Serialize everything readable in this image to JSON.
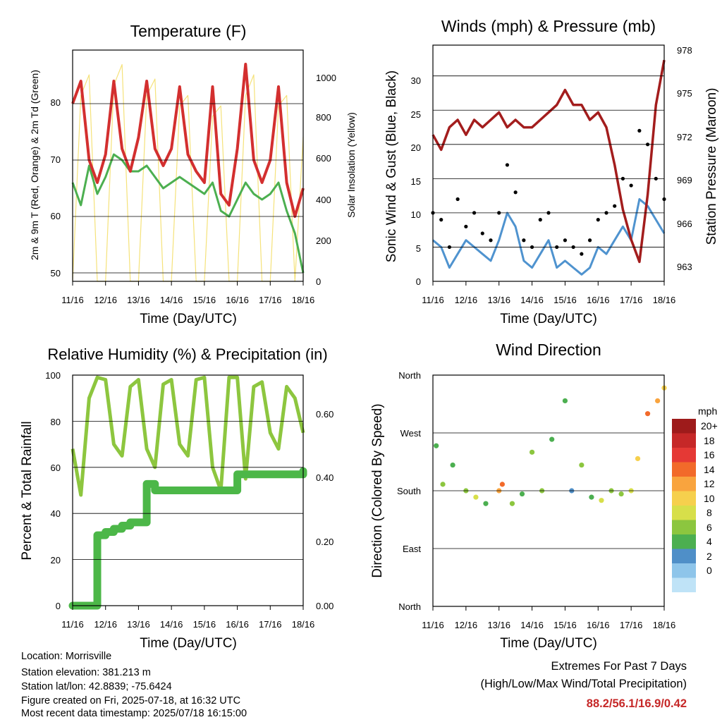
{
  "ticks_x": [
    "11/16",
    "12/16",
    "13/16",
    "14/16",
    "15/16",
    "16/16",
    "17/16",
    "18/16"
  ],
  "xlabel": "Time (Day/UTC)",
  "temperature": {
    "title": "Temperature (F)",
    "ylabel_left": "2m & 9m T (Red, Orange) & 2m Td (Green)",
    "ylabel_right": "Solar Insolation (Yellow)",
    "yticks_left": [
      "50",
      "60",
      "70",
      "80"
    ],
    "yticks_right": [
      "0",
      "200",
      "400",
      "600",
      "800",
      "1000"
    ]
  },
  "winds": {
    "title": "Winds (mph) & Pressure (mb)",
    "ylabel_left": "Sonic Wind & Gust (Blue, Black)",
    "ylabel_right": "Station Pressure (Maroon)",
    "yticks_left": [
      "0",
      "5",
      "10",
      "15",
      "20",
      "25",
      "30"
    ],
    "yticks_right": [
      "963",
      "966",
      "969",
      "972",
      "975",
      "978"
    ]
  },
  "humidity": {
    "title": "Relative Humidity (%) & Precipitation (in)",
    "ylabel_left": "Percent & Total Rainfall",
    "yticks_left": [
      "0",
      "20",
      "40",
      "60",
      "80",
      "100"
    ],
    "yticks_right": [
      "0.00",
      "0.20",
      "0.40",
      "0.60"
    ]
  },
  "direction": {
    "title": "Wind Direction",
    "ylabel_left": "Direction (Colored By Speed)",
    "yticks_left": [
      "North",
      "East",
      "South",
      "West",
      "North"
    ],
    "legend_title": "mph",
    "legend_labels": [
      "20+",
      "18",
      "16",
      "14",
      "12",
      "10",
      "8",
      "6",
      "4",
      "2",
      "0"
    ],
    "legend_colors": [
      "#9e1b1b",
      "#c62828",
      "#e53935",
      "#f26a2a",
      "#f9a43e",
      "#f6d04d",
      "#d7df4a",
      "#8cc63f",
      "#4caf50",
      "#4f8fc8",
      "#8ec5ea",
      "#bfe3f7"
    ]
  },
  "chart_data": [
    {
      "type": "line",
      "title": "Temperature (F)",
      "xlabel": "Time (Day/UTC)",
      "ylabel": "2m & 9m T (Red, Orange) & 2m Td (Green)",
      "y2label": "Solar Insolation (Yellow)",
      "x": [
        11.0,
        11.25,
        11.5,
        11.75,
        12.0,
        12.25,
        12.5,
        12.75,
        13.0,
        13.25,
        13.5,
        13.75,
        14.0,
        14.25,
        14.5,
        14.75,
        15.0,
        15.25,
        15.5,
        15.75,
        16.0,
        16.25,
        16.5,
        16.75,
        17.0,
        17.25,
        17.5,
        17.75,
        18.0
      ],
      "ylim": [
        48.5,
        89.5
      ],
      "y2lim": [
        0,
        1120
      ],
      "series": [
        {
          "name": "2m & 9m T",
          "color": "#d32f2f",
          "values": [
            80,
            84,
            70,
            66,
            71,
            84,
            72,
            68,
            74,
            84,
            72,
            69,
            72,
            83,
            71,
            68,
            66,
            83,
            64,
            62,
            72,
            87,
            70,
            66,
            70,
            83,
            66,
            60,
            65
          ]
        },
        {
          "name": "2m Td",
          "color": "#4caf50",
          "values": [
            66,
            62,
            69,
            64,
            67,
            71,
            70,
            68,
            68,
            69,
            67,
            65,
            66,
            67,
            66,
            65,
            64,
            66,
            61,
            60,
            63,
            66,
            64,
            63,
            64,
            66,
            61,
            57,
            50
          ]
        },
        {
          "name": "Solar Insolation",
          "color": "#f5e27a",
          "axis": "right",
          "values": [
            0,
            900,
            1000,
            0,
            0,
            950,
            1050,
            0,
            0,
            900,
            980,
            0,
            0,
            850,
            900,
            0,
            0,
            800,
            850,
            0,
            0,
            900,
            1000,
            0,
            0,
            850,
            900,
            0,
            700
          ]
        }
      ]
    },
    {
      "type": "line",
      "title": "Winds (mph) & Pressure (mb)",
      "xlabel": "Time (Day/UTC)",
      "ylabel": "Sonic Wind & Gust (Blue, Black)",
      "y2label": "Station Pressure (Maroon)",
      "x": [
        11.0,
        11.25,
        11.5,
        11.75,
        12.0,
        12.25,
        12.5,
        12.75,
        13.0,
        13.25,
        13.5,
        13.75,
        14.0,
        14.25,
        14.5,
        14.75,
        15.0,
        15.25,
        15.5,
        15.75,
        16.0,
        16.25,
        16.5,
        16.75,
        17.0,
        17.25,
        17.5,
        17.75,
        18.0
      ],
      "ylim": [
        0,
        34.5
      ],
      "y2lim": [
        962.2,
        978
      ],
      "series": [
        {
          "name": "Sonic Wind",
          "color": "#4f93cf",
          "values": [
            6,
            5,
            2,
            4,
            6,
            5,
            4,
            3,
            6,
            10,
            8,
            3,
            2,
            4,
            6,
            2,
            3,
            2,
            1,
            2,
            5,
            4,
            6,
            8,
            6,
            12,
            11,
            9,
            7
          ]
        },
        {
          "name": "Gust",
          "color": "#000000",
          "values": [
            10,
            9,
            5,
            12,
            8,
            10,
            7,
            6,
            10,
            17,
            13,
            6,
            5,
            9,
            10,
            5,
            6,
            5,
            4,
            6,
            9,
            10,
            11,
            15,
            14,
            22,
            20,
            15,
            12
          ]
        },
        {
          "name": "Station Pressure",
          "color": "#a31d1d",
          "axis": "right",
          "values": [
            972,
            971,
            972.5,
            973,
            972,
            973,
            972.5,
            973,
            973.5,
            972.5,
            973,
            972.5,
            972.5,
            973,
            973.5,
            974,
            975,
            974,
            974,
            973,
            973.5,
            972.5,
            970,
            967,
            965,
            963.5,
            968,
            974,
            977
          ]
        }
      ]
    },
    {
      "type": "line",
      "title": "Relative Humidity (%) & Precipitation (in)",
      "xlabel": "Time (Day/UTC)",
      "ylabel": "Percent & Total Rainfall",
      "x": [
        11.0,
        11.25,
        11.5,
        11.75,
        12.0,
        12.25,
        12.5,
        12.75,
        13.0,
        13.25,
        13.5,
        13.75,
        14.0,
        14.25,
        14.5,
        14.75,
        15.0,
        15.25,
        15.5,
        15.75,
        16.0,
        16.25,
        16.5,
        16.75,
        17.0,
        17.25,
        17.5,
        17.75,
        18.0
      ],
      "ylim": [
        0,
        100
      ],
      "y2lim": [
        0,
        0.72
      ],
      "series": [
        {
          "name": "Relative Humidity",
          "color": "#8dc63f",
          "values": [
            68,
            48,
            90,
            99,
            98,
            70,
            65,
            95,
            98,
            68,
            60,
            96,
            98,
            70,
            65,
            98,
            99,
            60,
            50,
            99,
            99,
            55,
            95,
            97,
            75,
            68,
            95,
            90,
            75
          ]
        },
        {
          "name": "Precipitation",
          "color": "#4cb748",
          "axis": "right",
          "values": [
            0,
            0,
            0,
            0.22,
            0.23,
            0.24,
            0.25,
            0.26,
            0.26,
            0.38,
            0.36,
            0.36,
            0.36,
            0.36,
            0.36,
            0.36,
            0.36,
            0.36,
            0.36,
            0.36,
            0.41,
            0.41,
            0.41,
            0.41,
            0.41,
            0.41,
            0.41,
            0.41,
            0.42
          ]
        }
      ]
    },
    {
      "type": "scatter",
      "title": "Wind Direction",
      "xlabel": "Time (Day/UTC)",
      "ylabel": "Direction (Colored By Speed)",
      "ylim": [
        0,
        360
      ],
      "x": [
        11.1,
        11.3,
        11.6,
        12.0,
        12.3,
        12.6,
        13.0,
        13.1,
        13.4,
        13.7,
        14.0,
        14.3,
        14.6,
        15.0,
        15.2,
        15.5,
        15.8,
        16.1,
        16.4,
        16.7,
        17.0,
        17.2,
        17.5,
        17.8,
        18.0
      ],
      "values": [
        250,
        190,
        220,
        180,
        170,
        160,
        180,
        190,
        160,
        175,
        240,
        180,
        260,
        320,
        180,
        220,
        170,
        165,
        180,
        175,
        180,
        230,
        300,
        320,
        340
      ],
      "speed": [
        4,
        6,
        3,
        5,
        8,
        4,
        12,
        13,
        5,
        3,
        6,
        5,
        4,
        3,
        2,
        6,
        4,
        7,
        5,
        6,
        8,
        10,
        13,
        11,
        9
      ]
    }
  ],
  "info": {
    "location": "Location: Morrisville",
    "elevation": "Station elevation: 381.213 m",
    "latlon": "Station lat/lon: 42.8839; -75.6424",
    "created": "Figure created on Fri, 2025-07-18, at 16:32 UTC",
    "recent": "Most recent data timestamp: 2025/07/18 16:15:00"
  },
  "extremes": {
    "line1": "Extremes For Past 7 Days",
    "line2": "(High/Low/Max Wind/Total Precipitation)",
    "values": "88.2/56.1/16.9/0.42",
    "value_color": "#c62828"
  }
}
